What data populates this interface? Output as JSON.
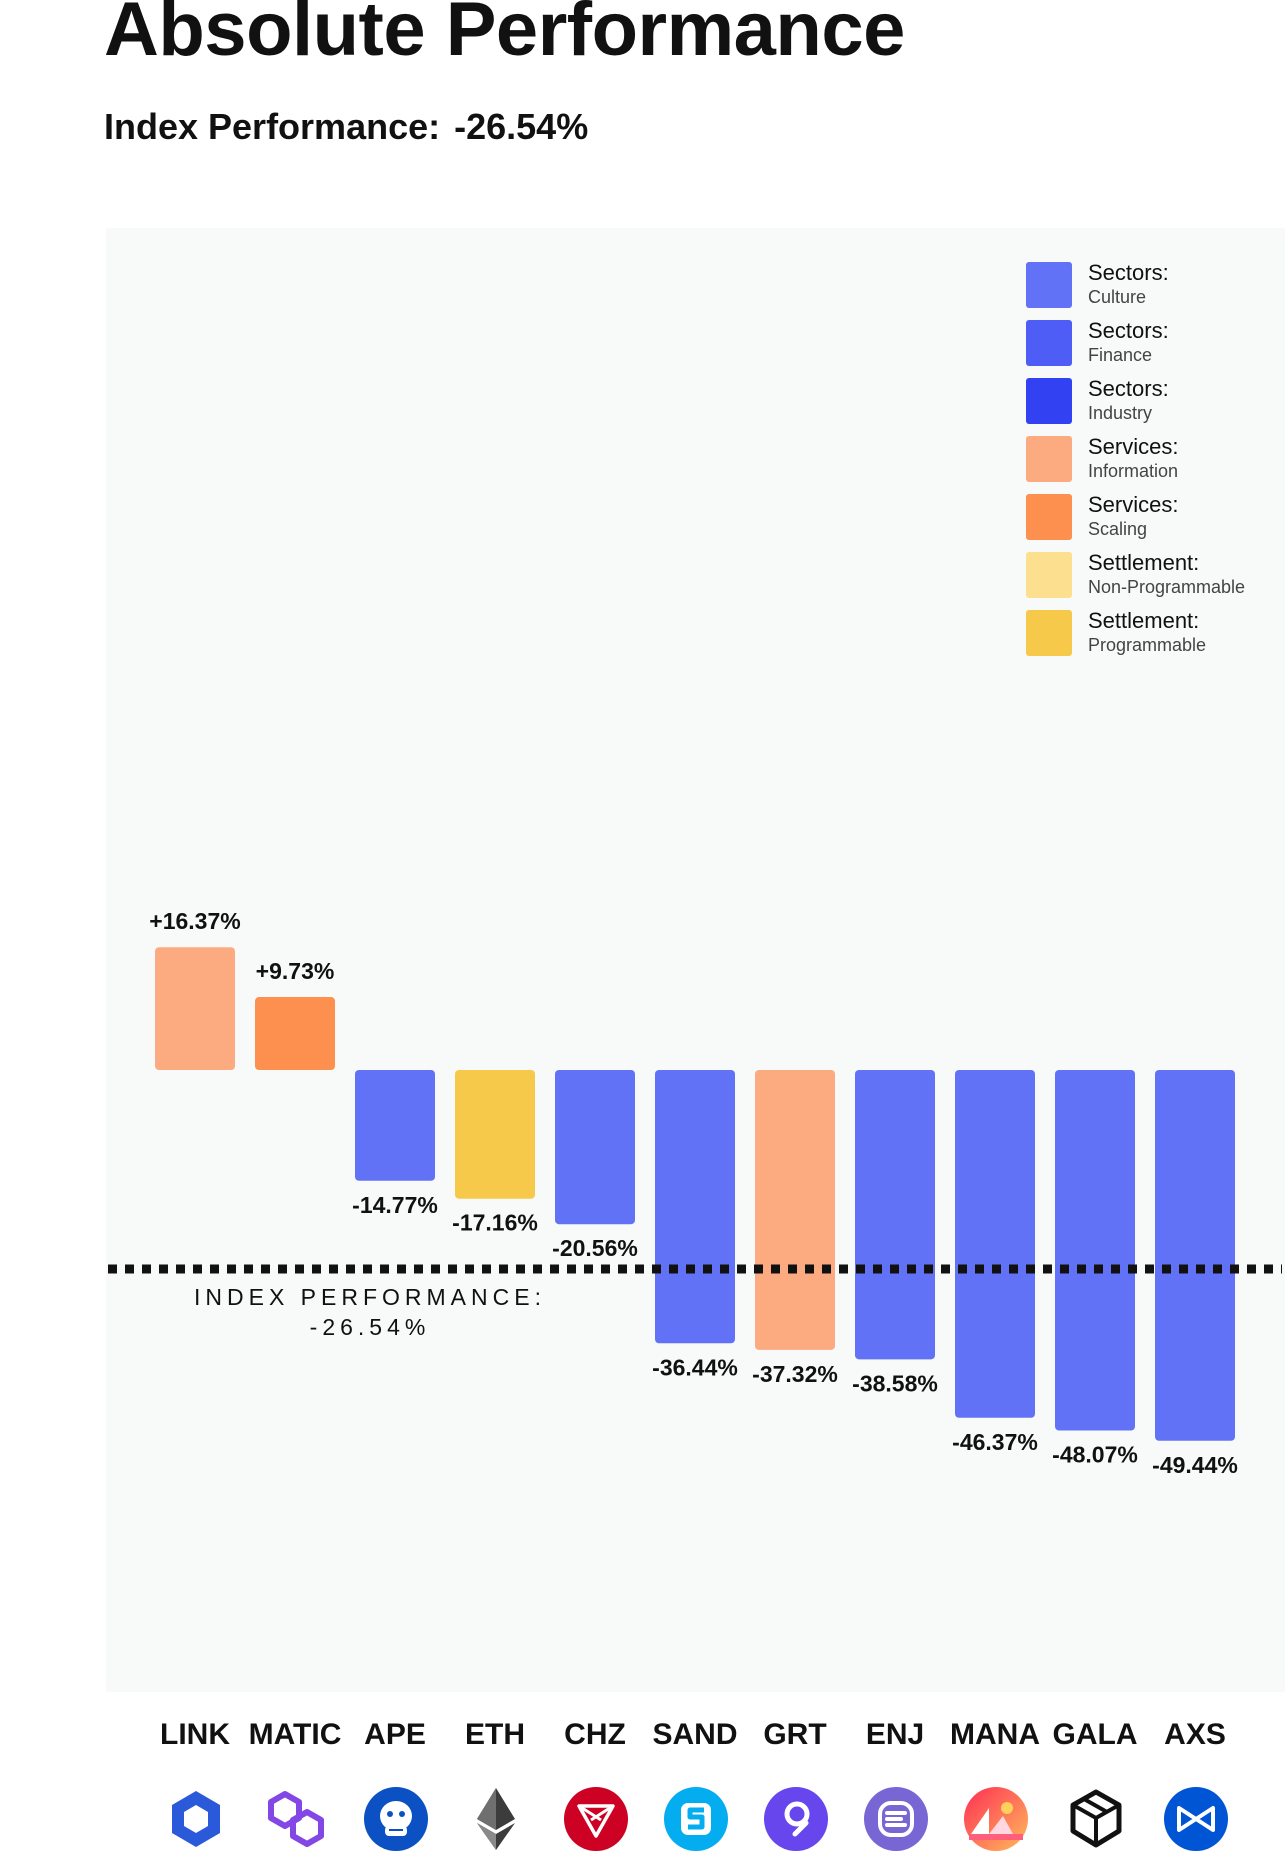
{
  "header": {
    "title": "Absolute Performance",
    "subtitle_label": "Index Performance:",
    "subtitle_value": "-26.54%"
  },
  "legend": [
    {
      "label": "Sectors:",
      "sub": "Culture",
      "color": "#6272f6"
    },
    {
      "label": "Sectors:",
      "sub": "Finance",
      "color": "#4d5df5"
    },
    {
      "label": "Sectors:",
      "sub": "Industry",
      "color": "#3242f2"
    },
    {
      "label": "Services:",
      "sub": "Information",
      "color": "#fcab80"
    },
    {
      "label": "Services:",
      "sub": "Scaling",
      "color": "#fd8f4f"
    },
    {
      "label": "Settlement:",
      "sub": "Non-Programmable",
      "color": "#fde08f"
    },
    {
      "label": "Settlement:",
      "sub": "Programmable",
      "color": "#f7c94a"
    }
  ],
  "index_line": {
    "label_line1": "INDEX PERFORMANCE:",
    "label_line2": "-26.54%",
    "value": -26.54
  },
  "chart_data": {
    "type": "bar",
    "title": "Absolute Performance",
    "subtitle": "Index Performance: -26.54%",
    "categories": [
      "LINK",
      "MATIC",
      "APE",
      "ETH",
      "CHZ",
      "SAND",
      "GRT",
      "ENJ",
      "MANA",
      "GALA",
      "AXS"
    ],
    "values": [
      16.37,
      9.73,
      -14.77,
      -17.16,
      -20.56,
      -36.44,
      -37.32,
      -38.58,
      -46.37,
      -48.07,
      -49.44
    ],
    "value_labels": [
      "+16.37%",
      "+9.73%",
      "-14.77%",
      "-17.16%",
      "-20.56%",
      "-36.44%",
      "-37.32%",
      "-38.58%",
      "-46.37%",
      "-48.07%",
      "-49.44%"
    ],
    "bar_colors": [
      "#fcab80",
      "#fd8f4f",
      "#6272f6",
      "#f7c94a",
      "#6272f6",
      "#6272f6",
      "#fcab80",
      "#6272f6",
      "#6272f6",
      "#6272f6",
      "#6272f6"
    ],
    "reference_line": -26.54,
    "ylim": [
      -80,
      60
    ],
    "grid": false,
    "legend_position": "top-right"
  },
  "icons": [
    {
      "name": "chainlink-icon",
      "color": "#2a5ada"
    },
    {
      "name": "polygon-icon",
      "color": "#8247e5"
    },
    {
      "name": "apecoin-icon",
      "color": "#0b51c4"
    },
    {
      "name": "ethereum-icon",
      "color": "#3c3c3d"
    },
    {
      "name": "chiliz-icon",
      "color": "#cd0124"
    },
    {
      "name": "sandbox-icon",
      "color": "#04adef"
    },
    {
      "name": "the-graph-icon",
      "color": "#6747ed"
    },
    {
      "name": "enjin-icon",
      "color": "#7866d5"
    },
    {
      "name": "decentraland-icon",
      "color": "#ff2d55"
    },
    {
      "name": "gala-icon",
      "color": "#111111"
    },
    {
      "name": "axie-infinity-icon",
      "color": "#0055d5"
    }
  ]
}
